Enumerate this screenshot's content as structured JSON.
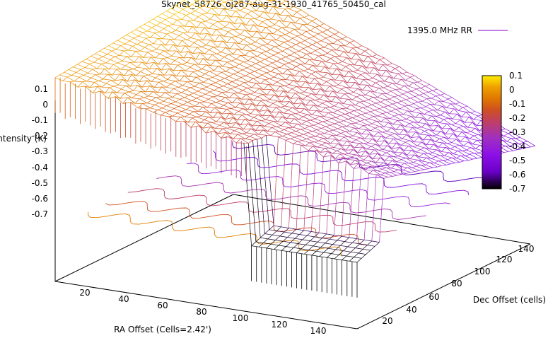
{
  "chart_data": {
    "type": "surface3d",
    "title": "Skynet_58726_oj287-aug-31-1930_41765_50450_cal",
    "xlabel": "RA Offset (Cells=2.42')",
    "ylabel": "Dec Offset (cells)",
    "zlabel": "Intensity (K)",
    "legend": {
      "label": "1395.0 MHz RR",
      "color": "#9b30d9",
      "placement": "top-right"
    },
    "x_ticks": [
      "20",
      "40",
      "60",
      "80",
      "100",
      "120",
      "140"
    ],
    "y_ticks": [
      "20",
      "40",
      "60",
      "80",
      "100",
      "120",
      "140"
    ],
    "z_ticks": [
      "0.1",
      "0",
      "-0.1",
      "-0.2",
      "-0.3",
      "-0.4",
      "-0.5",
      "-0.6",
      "-0.7"
    ],
    "xlim": [
      0,
      150
    ],
    "ylim": [
      0,
      150
    ],
    "zlim": [
      -0.7,
      0.1
    ],
    "colorbar": {
      "ticks": [
        "0.1",
        "0",
        "-0.1",
        "-0.2",
        "-0.3",
        "-0.4",
        "-0.5",
        "-0.6",
        "-0.7"
      ],
      "range": [
        -0.7,
        0.1
      ],
      "colors": [
        "#000000",
        "#6a00c8",
        "#8c10e8",
        "#a030c0",
        "#c04060",
        "#d05020",
        "#e07800",
        "#f0a000",
        "#ffee00"
      ]
    },
    "grid": false,
    "surface": {
      "corner_values": {
        "x0_y0": 0.0,
        "x150_y0": -0.3,
        "x0_y150": 0.1,
        "x150_y150": -0.55
      },
      "step_drop": {
        "x": 95,
        "from": -0.3,
        "to": -0.7
      }
    }
  }
}
